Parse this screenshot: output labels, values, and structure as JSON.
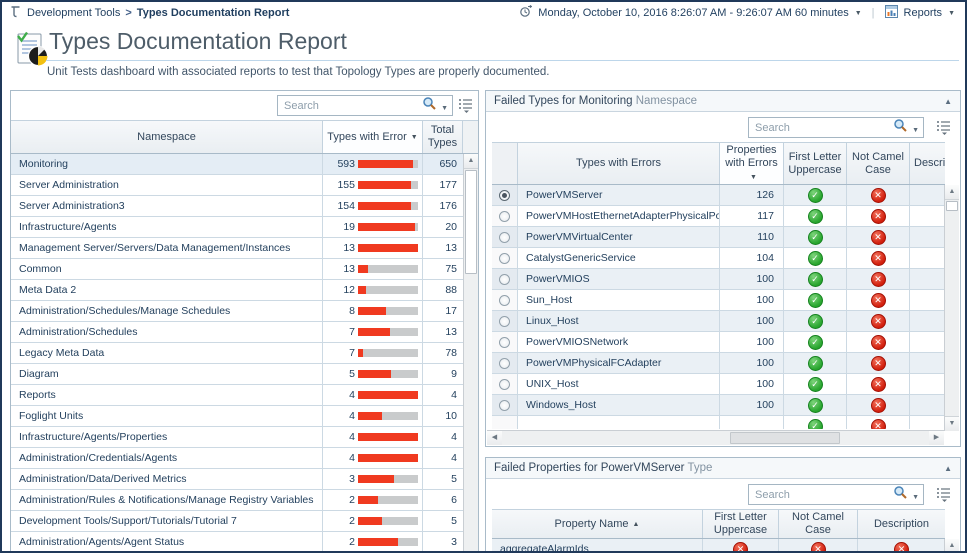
{
  "topbar": {
    "breadcrumb": {
      "icon": "topology-icon",
      "items": [
        "Development Tools",
        "Types Documentation Report"
      ],
      "separator": ">"
    },
    "timerange": {
      "icon": "time-range-icon",
      "label": "Monday, October 10, 2016 8:26:07 AM - 9:26:07 AM 60 minutes"
    },
    "reports": {
      "icon": "reports-icon",
      "label": "Reports"
    }
  },
  "header": {
    "icon": "report-document-icon",
    "title": "Types Documentation Report",
    "subtitle": "Unit Tests dashboard with associated reports to test that Topology Types are properly documented."
  },
  "namespace_panel": {
    "search": {
      "placeholder": "Search"
    },
    "columns": {
      "namespace": "Namespace",
      "types_with_error": "Types with Error",
      "total_types": "Total Types"
    },
    "sort": {
      "column": "types_with_error",
      "direction": "desc"
    },
    "rows": [
      {
        "namespace": "Monitoring",
        "types_with_error": 593,
        "total_types": 650,
        "selected": true
      },
      {
        "namespace": "Server Administration",
        "types_with_error": 155,
        "total_types": 177
      },
      {
        "namespace": "Server Administration3",
        "types_with_error": 154,
        "total_types": 176
      },
      {
        "namespace": "Infrastructure/Agents",
        "types_with_error": 19,
        "total_types": 20
      },
      {
        "namespace": "Management Server/Servers/Data Management/Instances",
        "types_with_error": 13,
        "total_types": 13
      },
      {
        "namespace": "Common",
        "types_with_error": 13,
        "total_types": 75
      },
      {
        "namespace": "Meta Data 2",
        "types_with_error": 12,
        "total_types": 88
      },
      {
        "namespace": "Administration/Schedules/Manage Schedules",
        "types_with_error": 8,
        "total_types": 17
      },
      {
        "namespace": "Administration/Schedules",
        "types_with_error": 7,
        "total_types": 13
      },
      {
        "namespace": "Legacy Meta Data",
        "types_with_error": 7,
        "total_types": 78
      },
      {
        "namespace": "Diagram",
        "types_with_error": 5,
        "total_types": 9
      },
      {
        "namespace": "Reports",
        "types_with_error": 4,
        "total_types": 4
      },
      {
        "namespace": "Foglight Units",
        "types_with_error": 4,
        "total_types": 10
      },
      {
        "namespace": "Infrastructure/Agents/Properties",
        "types_with_error": 4,
        "total_types": 4
      },
      {
        "namespace": "Administration/Credentials/Agents",
        "types_with_error": 4,
        "total_types": 4
      },
      {
        "namespace": "Administration/Data/Derived Metrics",
        "types_with_error": 3,
        "total_types": 5
      },
      {
        "namespace": "Administration/Rules & Notifications/Manage Registry Variables",
        "types_with_error": 2,
        "total_types": 6
      },
      {
        "namespace": "Development Tools/Support/Tutorials/Tutorial 7",
        "types_with_error": 2,
        "total_types": 5
      },
      {
        "namespace": "Administration/Agents/Agent Status",
        "types_with_error": 2,
        "total_types": 3
      }
    ]
  },
  "failed_types_panel": {
    "title": {
      "main": "Failed Types for Monitoring",
      "suffix": "Namespace"
    },
    "search": {
      "placeholder": "Search"
    },
    "columns": {
      "types_with_errors": "Types with Errors",
      "properties_with_errors": "Properties with Errors",
      "first_letter_uppercase": "First Letter Uppercase",
      "not_camel_case": "Not Camel Case",
      "description": "Description"
    },
    "sort": {
      "column": "properties_with_errors",
      "direction": "desc"
    },
    "rows": [
      {
        "name": "PowerVMServer",
        "properties_with_errors": 126,
        "first_letter_uppercase": "pass",
        "not_camel_case": "fail",
        "selected": true
      },
      {
        "name": "PowerVMHostEthernetAdapterPhysicalPort",
        "properties_with_errors": 117,
        "first_letter_uppercase": "pass",
        "not_camel_case": "fail"
      },
      {
        "name": "PowerVMVirtualCenter",
        "properties_with_errors": 110,
        "first_letter_uppercase": "pass",
        "not_camel_case": "fail"
      },
      {
        "name": "CatalystGenericService",
        "properties_with_errors": 104,
        "first_letter_uppercase": "pass",
        "not_camel_case": "fail"
      },
      {
        "name": "PowerVMIOS",
        "properties_with_errors": 100,
        "first_letter_uppercase": "pass",
        "not_camel_case": "fail"
      },
      {
        "name": "Sun_Host",
        "properties_with_errors": 100,
        "first_letter_uppercase": "pass",
        "not_camel_case": "fail"
      },
      {
        "name": "Linux_Host",
        "properties_with_errors": 100,
        "first_letter_uppercase": "pass",
        "not_camel_case": "fail"
      },
      {
        "name": "PowerVMIOSNetwork",
        "properties_with_errors": 100,
        "first_letter_uppercase": "pass",
        "not_camel_case": "fail"
      },
      {
        "name": "PowerVMPhysicalFCAdapter",
        "properties_with_errors": 100,
        "first_letter_uppercase": "pass",
        "not_camel_case": "fail"
      },
      {
        "name": "UNIX_Host",
        "properties_with_errors": 100,
        "first_letter_uppercase": "pass",
        "not_camel_case": "fail"
      },
      {
        "name": "Windows_Host",
        "properties_with_errors": 100,
        "first_letter_uppercase": "pass",
        "not_camel_case": "fail"
      }
    ],
    "partial_row": {
      "first_letter_uppercase": "pass",
      "not_camel_case": "fail"
    }
  },
  "failed_properties_panel": {
    "title": {
      "main": "Failed Properties for PowerVMServer",
      "suffix": "Type"
    },
    "search": {
      "placeholder": "Search"
    },
    "columns": {
      "property_name": "Property Name",
      "first_letter_uppercase": "First Letter Uppercase",
      "not_camel_case": "Not Camel Case",
      "description": "Description"
    },
    "sort": {
      "column": "property_name",
      "direction": "asc"
    },
    "rows": [
      {
        "property_name": "aggregateAlarmIds",
        "first_letter_uppercase": "fail",
        "not_camel_case": "fail",
        "description": "fail"
      }
    ]
  },
  "colors": {
    "page_border": "#20395a",
    "accent_blue": "#bdd6ea",
    "bar_red": "#f03a20",
    "bar_track": "#c9cbcc",
    "pass_green": "#28a52e",
    "fail_red": "#d21f0d",
    "selection": "#e4edf5",
    "stripe": "#eaf0f5"
  }
}
